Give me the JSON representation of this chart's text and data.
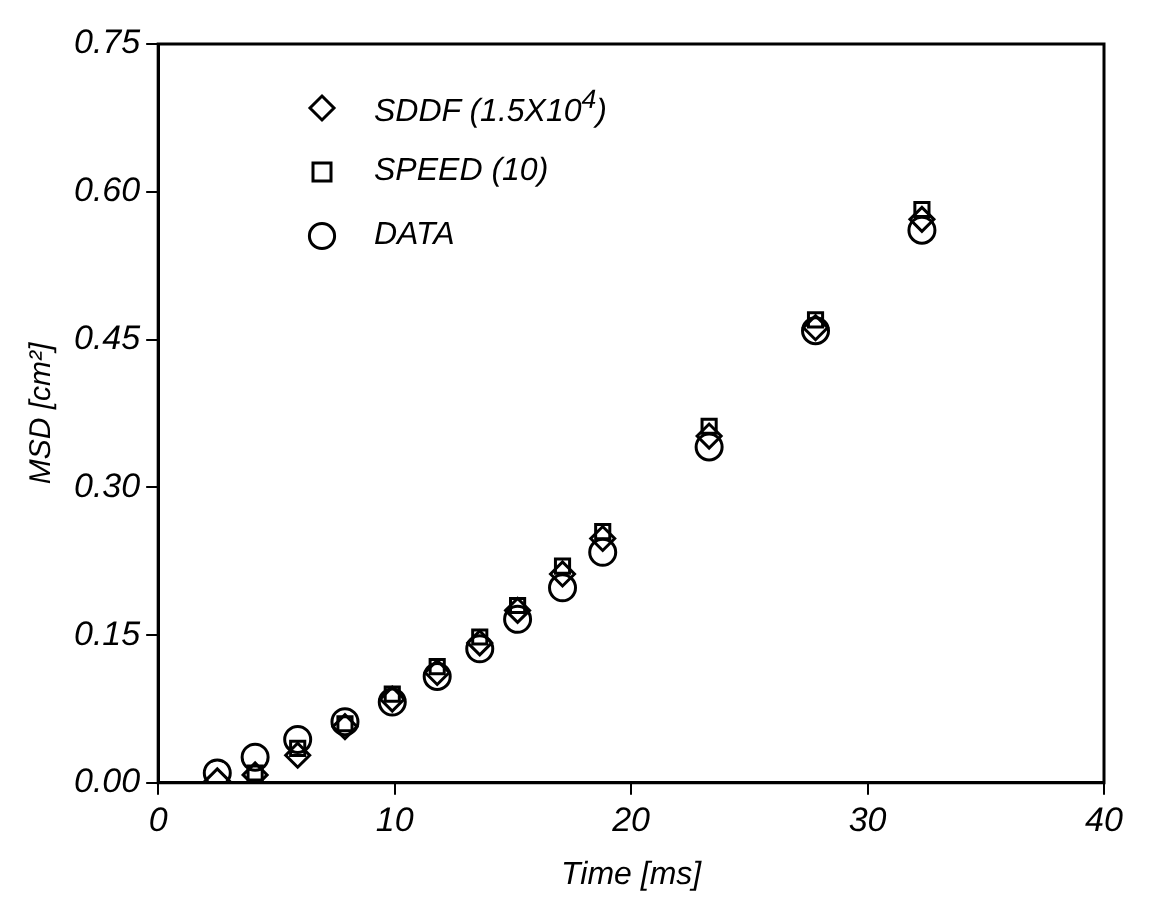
{
  "chart_data": {
    "type": "scatter",
    "xlabel": "Time [ms]",
    "ylabel": "MSD [cm²]",
    "legend": "top left",
    "grid": false,
    "x": [
      2.5,
      4.1,
      5.9,
      7.9,
      9.9,
      11.8,
      13.6,
      15.2,
      17.1,
      18.8,
      23.3,
      27.8,
      32.3
    ],
    "xlim": [
      0,
      40
    ],
    "xticks": [
      0,
      10,
      20,
      30,
      40
    ],
    "ylim": [
      0,
      0.75
    ],
    "yticks": [
      {
        "value": 0,
        "label": "0.00"
      },
      {
        "value": 0.15,
        "label": "0.15"
      },
      {
        "value": 0.3,
        "label": "0.30"
      },
      {
        "value": 0.45,
        "label": "0.45"
      },
      {
        "value": 0.6,
        "label": "0.60"
      },
      {
        "value": 0.75,
        "label": "0.75"
      }
    ],
    "series": [
      {
        "name": "SDDF (1.5X10$^{4}$)",
        "color": "#000000",
        "marker": "diamond",
        "values": [
          0.002,
          0.008,
          0.028,
          0.057,
          0.085,
          0.112,
          0.142,
          0.175,
          0.212,
          0.248,
          0.352,
          0.462,
          0.572
        ]
      },
      {
        "name": "SPEED (10)",
        "color": "#000000",
        "marker": "square",
        "values": [
          null,
          0.01,
          0.035,
          0.06,
          0.09,
          0.118,
          0.148,
          0.18,
          0.22,
          0.255,
          0.362,
          0.47,
          0.582
        ]
      },
      {
        "name": "DATA",
        "color": "#000000",
        "marker": "circle",
        "values": [
          0.01,
          0.026,
          0.044,
          0.062,
          0.082,
          0.108,
          0.136,
          0.166,
          0.198,
          0.234,
          0.341,
          0.459,
          0.561
        ]
      }
    ]
  }
}
